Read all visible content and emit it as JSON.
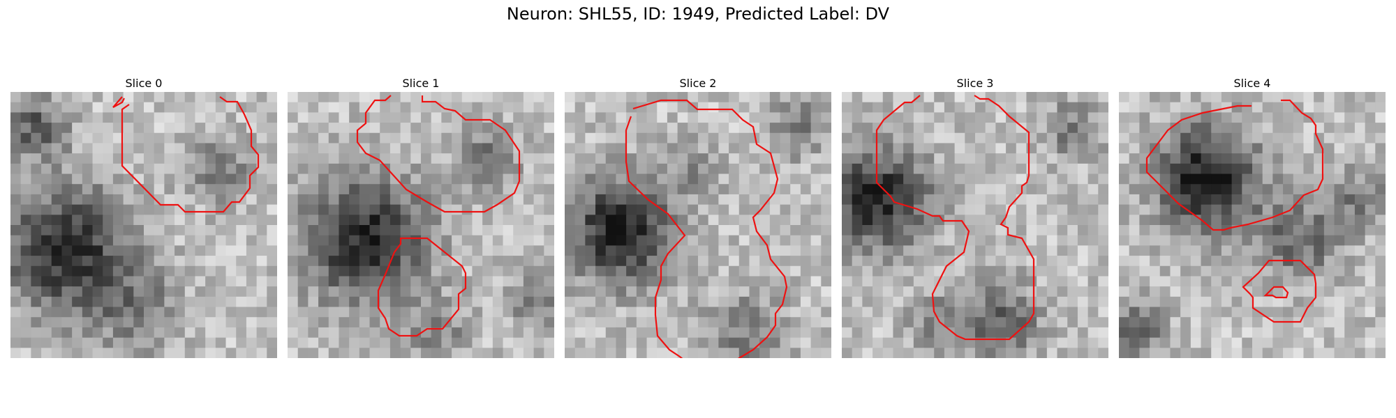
{
  "figure": {
    "title": "Neuron: SHL55, ID: 1949, Predicted Label: DV"
  },
  "colors": {
    "contour": "#ee1111",
    "grid_min": "#111111",
    "grid_max": "#f2f2f2"
  },
  "panels": [
    {
      "title": "Slice 0"
    },
    {
      "title": "Slice 1"
    },
    {
      "title": "Slice 2"
    },
    {
      "title": "Slice 3"
    },
    {
      "title": "Slice 4"
    }
  ]
}
